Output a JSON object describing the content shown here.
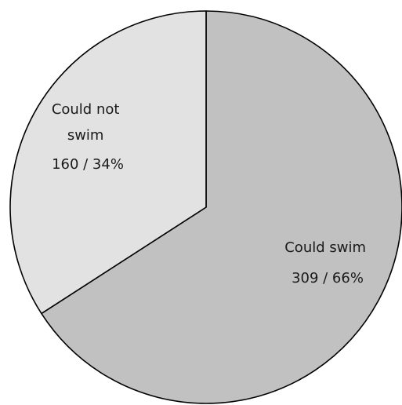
{
  "chart_data": {
    "type": "pie",
    "title": "",
    "start_angle": "12 o'clock",
    "direction": "clockwise",
    "slices": [
      {
        "name": "Could swim",
        "value": 309,
        "percent": "66%",
        "label_lines": [
          "Could swim",
          "309 / 66%"
        ],
        "color": "#c1c1c1"
      },
      {
        "name": "Could not swim",
        "value": 160,
        "percent": "34%",
        "label_lines": [
          "Could not",
          "swim",
          "160 / 34%"
        ],
        "color": "#e2e2e2"
      }
    ],
    "legend": "none",
    "outline_color": "#000000"
  }
}
